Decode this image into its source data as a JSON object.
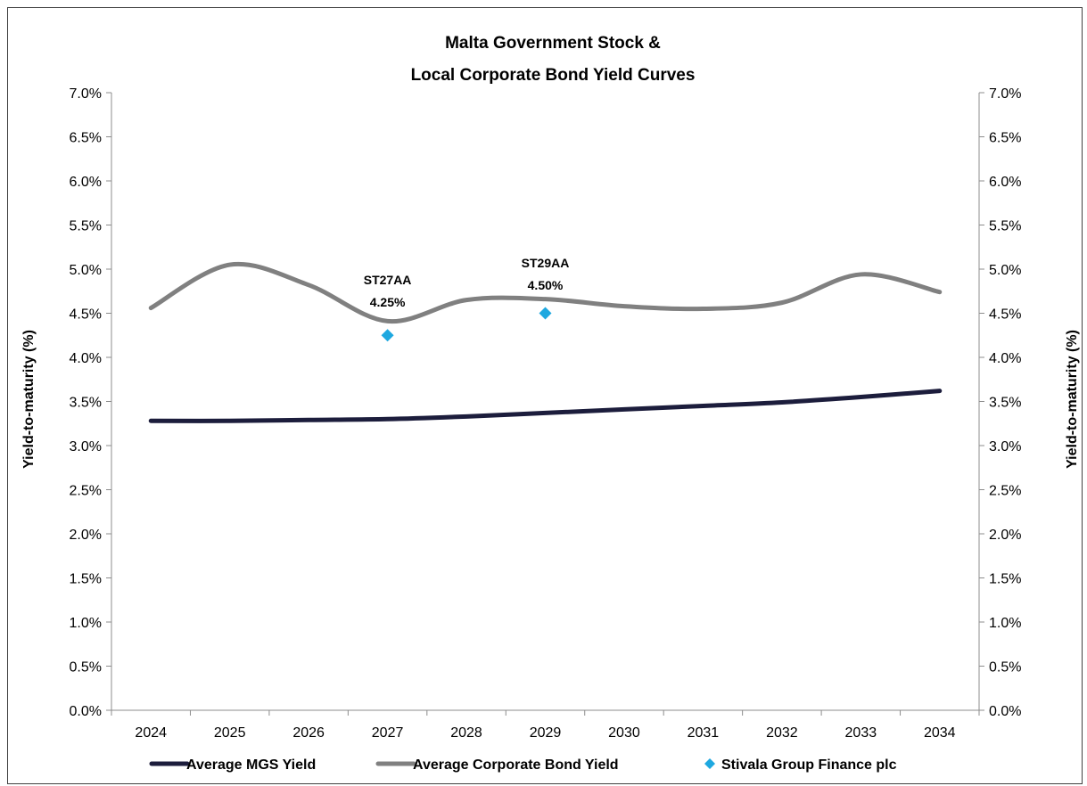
{
  "chart_data": {
    "type": "line",
    "title_lines": [
      "Malta Government Stock &",
      "Local Corporate Bond Yield Curves"
    ],
    "ylabel_left": "Yield-to-maturity (%)",
    "ylabel_right": "Yield-to-maturity (%)",
    "xlabel": "",
    "categories": [
      "2024",
      "2025",
      "2026",
      "2027",
      "2028",
      "2029",
      "2030",
      "2031",
      "2032",
      "2033",
      "2034"
    ],
    "ylim": [
      0,
      7.0
    ],
    "yticks": [
      "0.0%",
      "0.5%",
      "1.0%",
      "1.5%",
      "2.0%",
      "2.5%",
      "3.0%",
      "3.5%",
      "4.0%",
      "4.5%",
      "5.0%",
      "5.5%",
      "6.0%",
      "6.5%",
      "7.0%"
    ],
    "ytick_values": [
      0,
      0.5,
      1.0,
      1.5,
      2.0,
      2.5,
      3.0,
      3.5,
      4.0,
      4.5,
      5.0,
      5.5,
      6.0,
      6.5,
      7.0
    ],
    "grid": false,
    "legend_position": "bottom",
    "series": [
      {
        "name": "Average MGS Yield",
        "kind": "line",
        "color": "#1c1d3c",
        "x": [
          "2024",
          "2025",
          "2026",
          "2027",
          "2028",
          "2029",
          "2030",
          "2031",
          "2032",
          "2033",
          "2034"
        ],
        "values": [
          3.28,
          3.28,
          3.29,
          3.3,
          3.33,
          3.37,
          3.41,
          3.45,
          3.49,
          3.55,
          3.62
        ]
      },
      {
        "name": "Average Corporate Bond Yield",
        "kind": "line",
        "color": "#808080",
        "x": [
          "2024",
          "2025",
          "2026",
          "2027",
          "2028",
          "2029",
          "2030",
          "2031",
          "2032",
          "2033",
          "2034"
        ],
        "values": [
          4.56,
          5.05,
          4.82,
          4.41,
          4.65,
          4.66,
          4.58,
          4.55,
          4.62,
          4.94,
          4.74
        ]
      },
      {
        "name": "Stivala Group Finance plc",
        "kind": "scatter",
        "color": "#1ea8e0",
        "x": [
          "2027",
          "2029"
        ],
        "values": [
          4.25,
          4.5
        ]
      }
    ],
    "annotations": [
      {
        "x": "2027",
        "lines": [
          "ST27AA",
          "4.25%"
        ]
      },
      {
        "x": "2029",
        "lines": [
          "ST29AA",
          "4.50%"
        ]
      }
    ]
  }
}
